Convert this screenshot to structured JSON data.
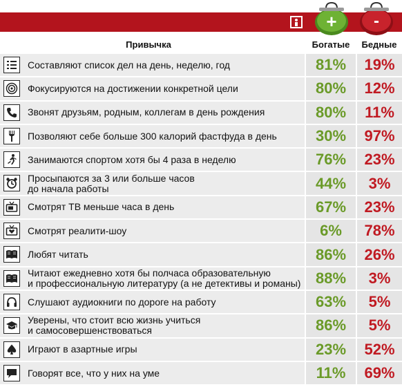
{
  "colors": {
    "header_red": "#b3141d",
    "rich_green": "#6a9a28",
    "poor_red": "#c01a22"
  },
  "header": {
    "habit": "Привычка",
    "rich": "Богатые",
    "poor": "Бедные",
    "rich_symbol": "+",
    "poor_symbol": "-"
  },
  "rows": [
    {
      "icon": "list-icon",
      "text": "Составляют список дел на день, неделю, год",
      "rich": "81%",
      "poor": "19%"
    },
    {
      "icon": "target-icon",
      "text": "Фокусируются на достижении конкретной цели",
      "rich": "80%",
      "poor": "12%"
    },
    {
      "icon": "phone-icon",
      "text": "Звонят друзьям, родным, коллегам в день рождения",
      "rich": "80%",
      "poor": "11%"
    },
    {
      "icon": "fork-icon",
      "text": "Позволяют себе больше 300 калорий фастфуда в день",
      "rich": "30%",
      "poor": "97%"
    },
    {
      "icon": "runner-icon",
      "text": "Занимаются спортом хотя бы 4 раза в неделю",
      "rich": "76%",
      "poor": "23%"
    },
    {
      "icon": "alarm-clock-icon",
      "text": "Просыпаются за 3 или больше часов\nдо начала работы",
      "rich": "44%",
      "poor": "3%"
    },
    {
      "icon": "tv-icon",
      "text": "Смотрят ТВ меньше часа в день",
      "rich": "67%",
      "poor": "23%"
    },
    {
      "icon": "tv-heart-icon",
      "text": "Смотрят реалити-шоу",
      "rich": "6%",
      "poor": "78%"
    },
    {
      "icon": "book-icon",
      "text": "Любят читать",
      "rich": "86%",
      "poor": "26%"
    },
    {
      "icon": "book-icon",
      "text": "Читают ежедневно хотя бы полчаса образовательную\nи профессиональную литературу (а не детективы и романы)",
      "rich": "88%",
      "poor": "3%"
    },
    {
      "icon": "headphones-icon",
      "text": "Слушают аудиокниги по дороге на работу",
      "rich": "63%",
      "poor": "5%"
    },
    {
      "icon": "graduation-cap-icon",
      "text": "Уверены, что стоит всю жизнь учиться\nи самосовершенствоваться",
      "rich": "86%",
      "poor": "5%"
    },
    {
      "icon": "spade-icon",
      "text": "Играют в азартные игры",
      "rich": "23%",
      "poor": "52%"
    },
    {
      "icon": "speech-bubble-icon",
      "text": "Говорят все, что у них на уме",
      "rich": "11%",
      "poor": "69%"
    }
  ]
}
